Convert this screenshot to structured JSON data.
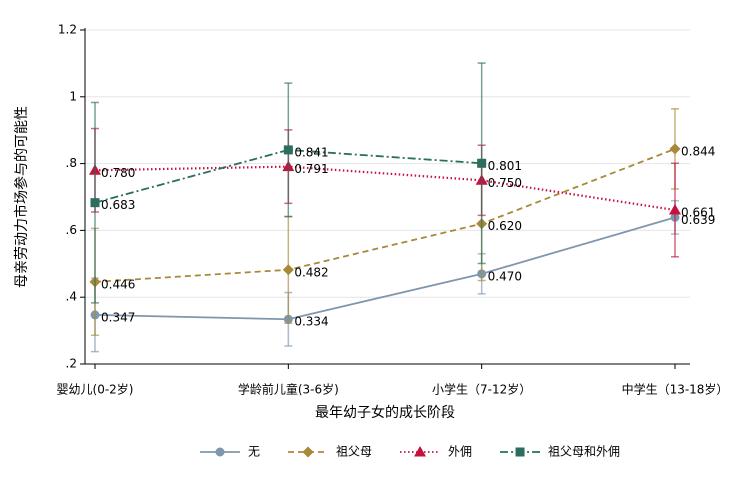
{
  "chart_data": {
    "type": "line",
    "xlabel": "最年幼子女的成长阶段",
    "ylabel": "母亲劳动力市场参与的可能性",
    "categories": [
      "婴幼儿(0-2岁)",
      "学龄前儿童(3-6岁)",
      "小学生（7-12岁）",
      "中学生（13-18岁）"
    ],
    "ylim": [
      0.2,
      1.2
    ],
    "yticks": [
      {
        "value": 0.2,
        "label": ".2"
      },
      {
        "value": 0.4,
        "label": ".4"
      },
      {
        "value": 0.6,
        "label": ".6"
      },
      {
        "value": 0.8,
        "label": ".8"
      },
      1,
      1.2
    ],
    "grid": true,
    "legend": "bottom",
    "series": [
      {
        "name": "无",
        "color": "#7f97ad",
        "marker": "circle",
        "line_style": "solid",
        "values": [
          0.347,
          0.334,
          0.47,
          0.639
        ],
        "value_labels": [
          "0.347",
          "0.334",
          "0.470",
          "0.639"
        ],
        "errors": [
          0.11,
          0.08,
          0.06,
          0.05
        ]
      },
      {
        "name": "祖父母",
        "color": "#a8893a",
        "marker": "diamond",
        "line_style": "dashed",
        "values": [
          0.446,
          0.482,
          0.62,
          0.844
        ],
        "value_labels": [
          "0.446",
          "0.482",
          "0.620",
          "0.844"
        ],
        "errors": [
          0.16,
          0.16,
          0.17,
          0.12
        ]
      },
      {
        "name": "外佣",
        "color": "#c3123e",
        "marker": "triangle",
        "line_style": "dotted",
        "values": [
          0.78,
          0.791,
          0.75,
          0.661
        ],
        "value_labels": [
          "0.780",
          "0.791",
          "0.750",
          "0.661"
        ],
        "errors": [
          0.125,
          0.11,
          0.105,
          0.14
        ]
      },
      {
        "name": "祖父母和外佣",
        "color": "#2b6d5e",
        "marker": "square",
        "line_style": "dashdot",
        "values": [
          0.683,
          0.841,
          0.801,
          null
        ],
        "value_labels": [
          "0.683",
          "0.841",
          "0.801",
          null
        ],
        "errors": [
          0.3,
          0.2,
          0.3,
          null
        ]
      }
    ]
  }
}
